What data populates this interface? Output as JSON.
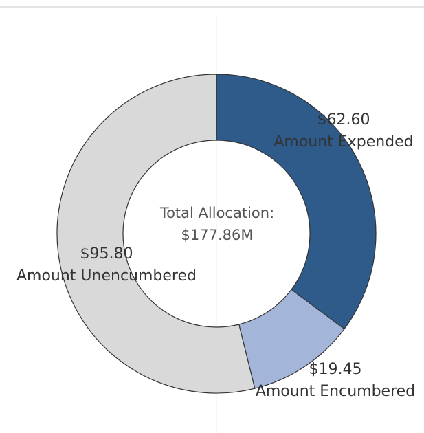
{
  "chart_data": {
    "type": "donut",
    "annotations": [
      "Total Allocation:",
      "$177.86M"
    ],
    "categories": [
      "Amount Expended",
      "Amount Encumbered",
      "Amount Unencumbered"
    ],
    "values": [
      62.6,
      19.45,
      95.8
    ],
    "value_labels": [
      "$62.60",
      "$19.45",
      "$95.80"
    ],
    "colors": [
      "#2e5b8a",
      "#a3b5d8",
      "#d9d9d9"
    ]
  }
}
